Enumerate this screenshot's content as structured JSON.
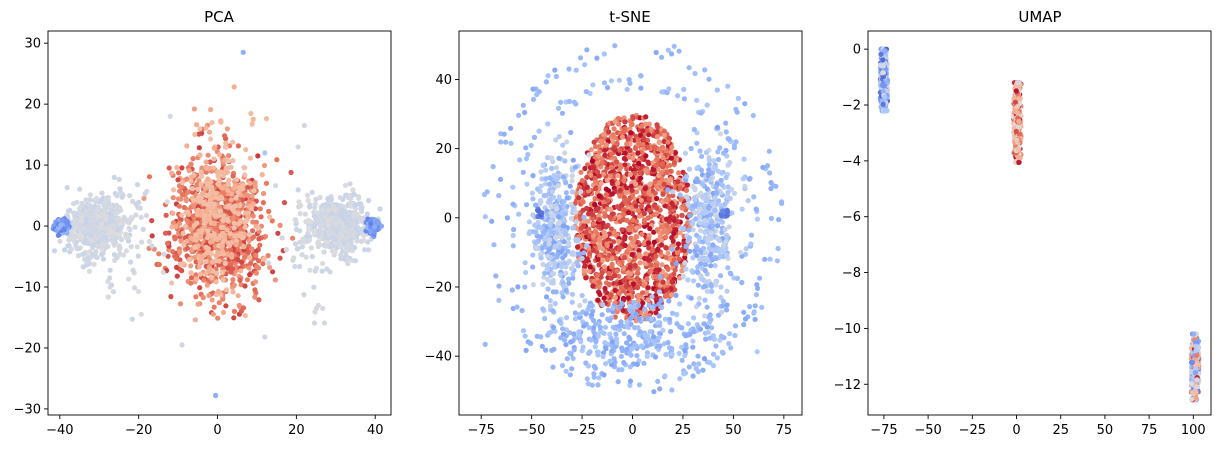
{
  "figure": {
    "colormap": {
      "name": "coolwarm",
      "stops": [
        "#3b4cc0",
        "#6f92f3",
        "#aac7fd",
        "#dddcdc",
        "#f7b89c",
        "#e7745b",
        "#b40426"
      ]
    }
  },
  "chart_data": [
    {
      "type": "scatter",
      "title": "PCA",
      "xlabel": "",
      "ylabel": "",
      "xlim": [
        -43,
        44
      ],
      "ylim": [
        -31,
        32
      ],
      "xticks": [
        -40,
        -20,
        0,
        20,
        40
      ],
      "yticks": [
        -30,
        -20,
        -10,
        0,
        10,
        20,
        30
      ],
      "xtick_labels": [
        "−40",
        "−20",
        "0",
        "20",
        "40"
      ],
      "ytick_labels": [
        "−30",
        "−20",
        "−10",
        "0",
        "10",
        "20",
        "30"
      ],
      "grid": false,
      "legend": "none",
      "clusters": [
        {
          "center": [
            0,
            0
          ],
          "spread": [
            6,
            5.5
          ],
          "count": 900,
          "color_range": [
            0.72,
            0.92
          ]
        },
        {
          "center": [
            0,
            2
          ],
          "spread": [
            5,
            6.5
          ],
          "count": 300,
          "color_range": [
            0.62,
            0.7
          ]
        },
        {
          "center": [
            -31,
            0
          ],
          "spread": [
            3.5,
            2.2
          ],
          "count": 500,
          "color_range": [
            0.42,
            0.5
          ]
        },
        {
          "center": [
            31,
            0
          ],
          "spread": [
            3.5,
            2.2
          ],
          "count": 500,
          "color_range": [
            0.42,
            0.5
          ]
        },
        {
          "center": [
            -39.5,
            0
          ],
          "spread": [
            0.7,
            0.5
          ],
          "count": 150,
          "color_range": [
            0.12,
            0.3
          ]
        },
        {
          "center": [
            39.5,
            0
          ],
          "spread": [
            0.7,
            0.5
          ],
          "count": 150,
          "color_range": [
            0.12,
            0.3
          ]
        },
        {
          "center": [
            -24,
            -2
          ],
          "spread": [
            4,
            5
          ],
          "count": 90,
          "color_range": [
            0.44,
            0.5
          ]
        },
        {
          "center": [
            24,
            -2
          ],
          "spread": [
            4,
            5
          ],
          "count": 90,
          "color_range": [
            0.44,
            0.5
          ]
        }
      ],
      "highlight_points": [
        {
          "x": 6.5,
          "y": 28.5,
          "c": 0.25
        },
        {
          "x": -0.5,
          "y": -27.8,
          "c": 0.25
        },
        {
          "x": 12,
          "y": 12,
          "c": 0.35
        },
        {
          "x": -12,
          "y": 18,
          "c": 0.46
        },
        {
          "x": 22,
          "y": 16.5,
          "c": 0.46
        },
        {
          "x": -9,
          "y": -19.5,
          "c": 0.46
        },
        {
          "x": 12,
          "y": -18.2,
          "c": 0.46
        }
      ]
    },
    {
      "type": "scatter",
      "title": "t-SNE",
      "xlabel": "",
      "ylabel": "",
      "xlim": [
        -86,
        84
      ],
      "ylim": [
        -57,
        54
      ],
      "xticks": [
        -75,
        -50,
        -25,
        0,
        25,
        50,
        75
      ],
      "yticks": [
        -40,
        -20,
        0,
        20,
        40
      ],
      "xtick_labels": [
        "−75",
        "−50",
        "−25",
        "0",
        "25",
        "50",
        "75"
      ],
      "ytick_labels": [
        "−40",
        "−20",
        "0",
        "20",
        "40"
      ],
      "grid": false,
      "legend": "none",
      "clusters": [
        {
          "center": [
            0,
            0
          ],
          "spread": [
            16,
            17
          ],
          "count": 1500,
          "color_range": [
            0.72,
            1.0
          ],
          "shape": "disk",
          "radius": [
            29,
            30
          ]
        },
        {
          "center": [
            -38,
            -2
          ],
          "spread": [
            6,
            11
          ],
          "count": 380,
          "color_range": [
            0.22,
            0.46
          ]
        },
        {
          "center": [
            38,
            -2
          ],
          "spread": [
            6,
            11
          ],
          "count": 380,
          "color_range": [
            0.22,
            0.46
          ]
        },
        {
          "center": [
            0,
            -34
          ],
          "spread": [
            22,
            6
          ],
          "count": 300,
          "color_range": [
            0.22,
            0.35
          ]
        },
        {
          "center": [
            -46,
            1
          ],
          "spread": [
            1,
            1
          ],
          "count": 12,
          "color_range": [
            0.05,
            0.15
          ]
        },
        {
          "center": [
            46,
            1
          ],
          "spread": [
            1,
            1
          ],
          "count": 12,
          "color_range": [
            0.05,
            0.15
          ]
        }
      ],
      "rings": [
        {
          "radius": [
            72,
            50
          ],
          "count": 130,
          "color_range": [
            0.24,
            0.33
          ]
        },
        {
          "radius": [
            60,
            40
          ],
          "count": 120,
          "color_range": [
            0.24,
            0.36
          ]
        }
      ]
    },
    {
      "type": "scatter",
      "title": "UMAP",
      "xlabel": "",
      "ylabel": "",
      "xlim": [
        -84,
        110
      ],
      "ylim": [
        -13.1,
        0.65
      ],
      "xticks": [
        -75,
        -50,
        -25,
        0,
        25,
        50,
        75,
        100
      ],
      "yticks": [
        -12,
        -10,
        -8,
        -6,
        -4,
        -2,
        0
      ],
      "xtick_labels": [
        "−75",
        "−50",
        "−25",
        "0",
        "25",
        "50",
        "75",
        "100"
      ],
      "ytick_labels": [
        "−12",
        "−10",
        "−8",
        "−6",
        "−4",
        "−2",
        "0"
      ],
      "grid": false,
      "legend": "none",
      "clusters": [
        {
          "center": [
            -75,
            -1.1
          ],
          "spread": [
            0.9,
            0.55
          ],
          "count": 500,
          "color_range": [
            0.05,
            0.55
          ],
          "clip": [
            [
              -77,
              0.0
            ],
            [
              -73,
              -2.2
            ]
          ]
        },
        {
          "center": [
            0.5,
            -2.6
          ],
          "spread": [
            0.9,
            0.7
          ],
          "count": 500,
          "color_range": [
            0.45,
            0.98
          ],
          "clip": [
            [
              -1.5,
              -1.2
            ],
            [
              2.5,
              -4.05
            ]
          ]
        },
        {
          "center": [
            101,
            -11.4
          ],
          "spread": [
            1.0,
            0.55
          ],
          "count": 500,
          "color_range": [
            0.05,
            0.95
          ],
          "clip": [
            [
              99,
              -10.2
            ],
            [
              103,
              -12.55
            ]
          ]
        }
      ]
    }
  ]
}
